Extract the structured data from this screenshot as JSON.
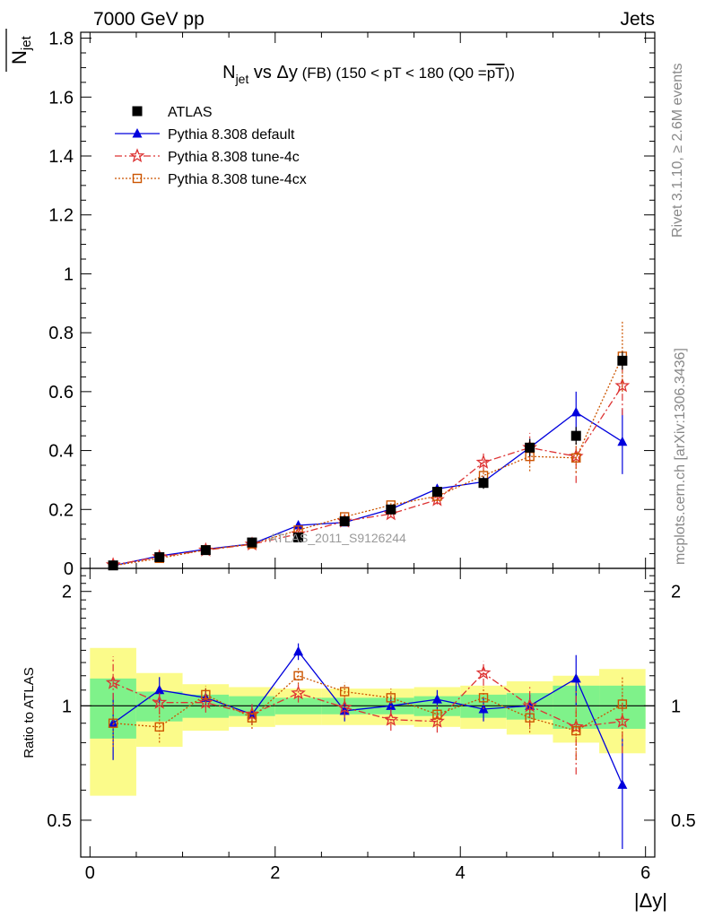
{
  "chart_data": {
    "type": "scatter",
    "energy_label": "7000 GeV pp",
    "process_label": "Jets",
    "title": {
      "main": "N",
      "main_sub": "jet",
      "vs": " vs ",
      "delta": "Δy",
      "suffix": " (FB) (150 < pT < 180 (Q0 =",
      "overline": "pT",
      "close": "))"
    },
    "ylabel": {
      "main": "N",
      "sub": "jet"
    },
    "xlabel": "|Δy|",
    "ratio_ylabel": "Ratio to ATLAS",
    "watermark": "ATLAS_2011_S9126244",
    "rivet_label": "Rivet 3.1.10, ≥ 2.6M events",
    "mcplots_label": "mcplots.cern.ch [arXiv:1306.3436]",
    "xlim": [
      -0.1,
      6.1
    ],
    "ylim": [
      0,
      1.82
    ],
    "ratio_ylim": [
      0.4,
      2.3
    ],
    "x_ticks": [
      0,
      2,
      4,
      6
    ],
    "y_ticks": [
      0,
      0.2,
      0.4,
      0.6,
      0.8,
      1,
      1.2,
      1.4,
      1.6,
      1.8
    ],
    "y_tick_labels": [
      "0",
      "0.2",
      "0.4",
      "0.6",
      "0.8",
      "1",
      "1.2",
      "1.4",
      "1.6",
      "1.8"
    ],
    "ratio_y_ticks": [
      0.5,
      1,
      2
    ],
    "ratio_y_tick_labels": [
      "0.5",
      "1",
      "2"
    ],
    "bins": [
      [
        0,
        0.5
      ],
      [
        0.5,
        1
      ],
      [
        1,
        1.5
      ],
      [
        1.5,
        2
      ],
      [
        2,
        2.5
      ],
      [
        2.5,
        3
      ],
      [
        3,
        3.5
      ],
      [
        3.5,
        4
      ],
      [
        4,
        4.5
      ],
      [
        4.5,
        5
      ],
      [
        5,
        5.5
      ],
      [
        5.5,
        6
      ]
    ],
    "x": [
      0.25,
      0.75,
      1.25,
      1.75,
      2.25,
      2.75,
      3.25,
      3.75,
      4.25,
      4.75,
      5.25,
      5.75
    ],
    "data": {
      "name": "ATLAS",
      "color": "#000000",
      "values": [
        0.01,
        0.038,
        0.062,
        0.088,
        0.105,
        0.16,
        0.2,
        0.26,
        0.29,
        0.41,
        0.45,
        0.705
      ],
      "errors": [
        0.002,
        0.003,
        0.004,
        0.005,
        0.007,
        0.01,
        0.012,
        0.016,
        0.02,
        0.03,
        0.03,
        0.03
      ]
    },
    "ratio_band_inner": [
      0.18,
      0.09,
      0.07,
      0.06,
      0.05,
      0.05,
      0.05,
      0.06,
      0.07,
      0.08,
      0.13,
      0.13
    ],
    "ratio_band_outer": [
      0.42,
      0.22,
      0.14,
      0.12,
      0.11,
      0.11,
      0.11,
      0.12,
      0.13,
      0.16,
      0.2,
      0.25
    ],
    "band_colors": {
      "inner": "#7ff28a",
      "outer": "#fbfb8a"
    },
    "series": [
      {
        "name": "Pythia 8.308 default",
        "color": "#0000dd",
        "marker": "triangle",
        "line": "solid",
        "values": [
          0.009,
          0.042,
          0.065,
          0.083,
          0.146,
          0.156,
          0.201,
          0.27,
          0.294,
          0.41,
          0.53,
          0.43
        ],
        "errors": [
          0.002,
          0.003,
          0.004,
          0.005,
          0.007,
          0.01,
          0.012,
          0.016,
          0.02,
          0.03,
          0.07,
          0.11
        ],
        "ratio": [
          0.9,
          1.1,
          1.05,
          0.95,
          1.39,
          0.97,
          1.0,
          1.04,
          0.98,
          1.0,
          1.18,
          0.62
        ],
        "ratio_err": [
          0.18,
          0.09,
          0.06,
          0.06,
          0.07,
          0.06,
          0.06,
          0.06,
          0.07,
          0.07,
          0.18,
          0.2
        ]
      },
      {
        "name": "Pythia 8.308 tune-4c",
        "color": "#dd3333",
        "marker": "star",
        "line": "dashdot",
        "values": [
          0.012,
          0.039,
          0.062,
          0.082,
          0.117,
          0.16,
          0.185,
          0.233,
          0.36,
          0.41,
          0.38,
          0.62
        ],
        "errors": [
          0.002,
          0.003,
          0.004,
          0.005,
          0.008,
          0.01,
          0.012,
          0.016,
          0.03,
          0.05,
          0.09,
          0.1
        ],
        "ratio": [
          1.15,
          1.02,
          1.02,
          0.95,
          1.08,
          0.99,
          0.92,
          0.91,
          1.22,
          1.0,
          0.88,
          0.91
        ],
        "ratio_err": [
          0.2,
          0.07,
          0.06,
          0.06,
          0.06,
          0.06,
          0.06,
          0.06,
          0.09,
          0.12,
          0.22,
          0.16
        ]
      },
      {
        "name": "Pythia 8.308 tune-4cx",
        "color": "#cc5500",
        "marker": "square-open",
        "line": "dotted",
        "values": [
          0.009,
          0.034,
          0.063,
          0.083,
          0.13,
          0.175,
          0.215,
          0.245,
          0.315,
          0.38,
          0.375,
          0.72
        ],
        "errors": [
          0.002,
          0.003,
          0.004,
          0.005,
          0.008,
          0.01,
          0.012,
          0.016,
          0.02,
          0.05,
          0.05,
          0.12
        ],
        "ratio": [
          0.9,
          0.88,
          1.07,
          0.93,
          1.2,
          1.09,
          1.05,
          0.95,
          1.05,
          0.93,
          0.86,
          1.01
        ],
        "ratio_err": [
          0.12,
          0.08,
          0.06,
          0.06,
          0.06,
          0.06,
          0.06,
          0.06,
          0.07,
          0.08,
          0.14,
          0.18
        ]
      }
    ]
  }
}
